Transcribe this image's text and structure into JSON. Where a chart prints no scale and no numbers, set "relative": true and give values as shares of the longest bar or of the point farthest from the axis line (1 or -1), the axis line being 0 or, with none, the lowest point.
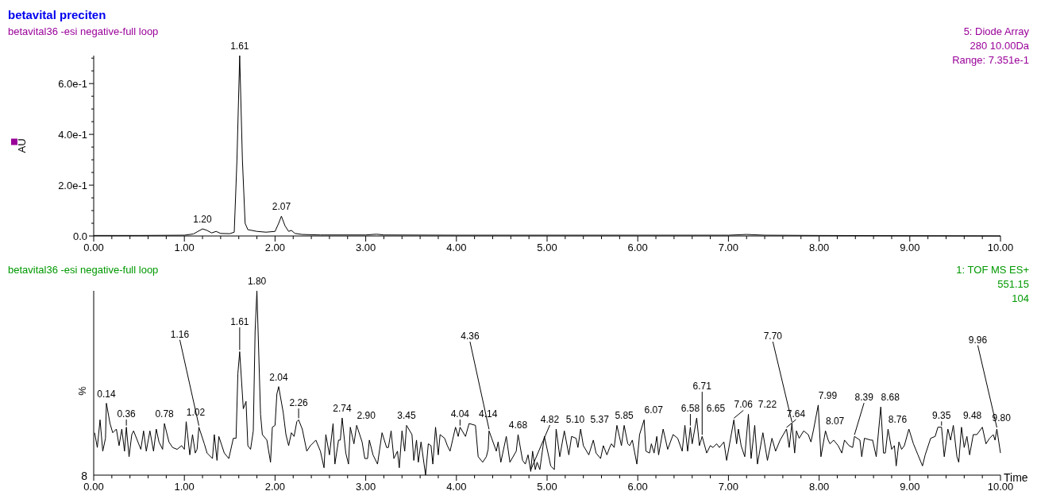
{
  "chart_data": [
    {
      "type": "line",
      "title": "betavital preciten",
      "subtitle": "betavital36 -esi negative-full loop",
      "ylabel": "AU",
      "xlim": [
        0,
        10
      ],
      "ylim": [
        0,
        0.71
      ],
      "xticks": [
        {
          "value": 0,
          "label": "0.00"
        },
        {
          "value": 0.2,
          "label": null
        },
        {
          "value": 0.4,
          "label": null
        },
        {
          "value": 0.6,
          "label": null
        },
        {
          "value": 0.8,
          "label": null
        },
        {
          "value": 1,
          "label": "1.00"
        },
        {
          "value": 1.2,
          "label": null
        },
        {
          "value": 1.4,
          "label": null
        },
        {
          "value": 1.6,
          "label": null
        },
        {
          "value": 1.8,
          "label": null
        },
        {
          "value": 2,
          "label": "2.00"
        },
        {
          "value": 2.2,
          "label": null
        },
        {
          "value": 2.4,
          "label": null
        },
        {
          "value": 2.6,
          "label": null
        },
        {
          "value": 2.8,
          "label": null
        },
        {
          "value": 3,
          "label": "3.00"
        },
        {
          "value": 3.2,
          "label": null
        },
        {
          "value": 3.4,
          "label": null
        },
        {
          "value": 3.6,
          "label": null
        },
        {
          "value": 3.8,
          "label": null
        },
        {
          "value": 4,
          "label": "4.00"
        },
        {
          "value": 4.2,
          "label": null
        },
        {
          "value": 4.4,
          "label": null
        },
        {
          "value": 4.6,
          "label": null
        },
        {
          "value": 4.8,
          "label": null
        },
        {
          "value": 5,
          "label": "5.00"
        },
        {
          "value": 5.2,
          "label": null
        },
        {
          "value": 5.4,
          "label": null
        },
        {
          "value": 5.6,
          "label": null
        },
        {
          "value": 5.8,
          "label": null
        },
        {
          "value": 6,
          "label": "6.00"
        },
        {
          "value": 6.2,
          "label": null
        },
        {
          "value": 6.4,
          "label": null
        },
        {
          "value": 6.6,
          "label": null
        },
        {
          "value": 6.8,
          "label": null
        },
        {
          "value": 7,
          "label": "7.00"
        },
        {
          "value": 7.2,
          "label": null
        },
        {
          "value": 7.4,
          "label": null
        },
        {
          "value": 7.6,
          "label": null
        },
        {
          "value": 7.8,
          "label": null
        },
        {
          "value": 8,
          "label": "8.00"
        },
        {
          "value": 8.2,
          "label": null
        },
        {
          "value": 8.4,
          "label": null
        },
        {
          "value": 8.6,
          "label": null
        },
        {
          "value": 8.8,
          "label": null
        },
        {
          "value": 9,
          "label": "9.00"
        },
        {
          "value": 9.2,
          "label": null
        },
        {
          "value": 9.4,
          "label": null
        },
        {
          "value": 9.6,
          "label": null
        },
        {
          "value": 9.8,
          "label": null
        },
        {
          "value": 10,
          "label": "10.00"
        }
      ],
      "yticks": [
        {
          "value": 0,
          "label": "0.0"
        },
        {
          "value": 0.05,
          "label": null
        },
        {
          "value": 0.1,
          "label": null
        },
        {
          "value": 0.15,
          "label": null
        },
        {
          "value": 0.2,
          "label": "2.0e-1"
        },
        {
          "value": 0.25,
          "label": null
        },
        {
          "value": 0.3,
          "label": null
        },
        {
          "value": 0.35,
          "label": null
        },
        {
          "value": 0.4,
          "label": "4.0e-1"
        },
        {
          "value": 0.45,
          "label": null
        },
        {
          "value": 0.5,
          "label": null
        },
        {
          "value": 0.55,
          "label": null
        },
        {
          "value": 0.6,
          "label": "6.0e-1"
        },
        {
          "value": 0.65,
          "label": null
        },
        {
          "value": 0.7,
          "label": null
        }
      ],
      "series": [
        {
          "color": "#000000",
          "x": [
            0,
            0.5,
            1,
            1.1,
            1.2,
            1.25,
            1.3,
            1.35,
            1.4,
            1.5,
            1.55,
            1.58,
            1.61,
            1.64,
            1.67,
            1.7,
            1.8,
            1.9,
            2,
            2.04,
            2.07,
            2.11,
            2.15,
            2.18,
            2.22,
            2.3,
            2.5,
            3,
            3.12,
            3.2,
            4,
            5,
            6,
            7,
            7.2,
            7.4,
            8,
            9,
            10
          ],
          "values": [
            0.002,
            0.002,
            0.003,
            0.008,
            0.028,
            0.022,
            0.012,
            0.018,
            0.01,
            0.009,
            0.015,
            0.3,
            0.71,
            0.3,
            0.05,
            0.025,
            0.018,
            0.015,
            0.018,
            0.05,
            0.078,
            0.04,
            0.018,
            0.022,
            0.01,
            0.006,
            0.004,
            0.004,
            0.007,
            0.004,
            0.003,
            0.003,
            0.003,
            0.003,
            0.006,
            0.003,
            0.002,
            0.001,
            0
          ]
        }
      ],
      "annotations": [
        "5: Diode Array",
        "280 10.00Da",
        "Range: 7.351e-1",
        {
          "text": "1.20",
          "x": 1.2,
          "y": 0.028
        },
        {
          "text": "1.61",
          "x": 1.61,
          "y": 0.71
        },
        {
          "text": "2.07",
          "x": 2.07,
          "y": 0.078
        }
      ]
    },
    {
      "type": "line",
      "subtitle": "betavital36 -esi negative-full loop",
      "ylabel": "%",
      "xlabel": "Time",
      "relative": true,
      "xlim": [
        0,
        10
      ],
      "xticks": [
        {
          "value": 0,
          "label": "0.00"
        },
        {
          "value": 0.2,
          "label": null
        },
        {
          "value": 0.4,
          "label": null
        },
        {
          "value": 0.6,
          "label": null
        },
        {
          "value": 0.8,
          "label": null
        },
        {
          "value": 1,
          "label": "1.00"
        },
        {
          "value": 1.2,
          "label": null
        },
        {
          "value": 1.4,
          "label": null
        },
        {
          "value": 1.6,
          "label": null
        },
        {
          "value": 1.8,
          "label": null
        },
        {
          "value": 2,
          "label": "2.00"
        },
        {
          "value": 2.2,
          "label": null
        },
        {
          "value": 2.4,
          "label": null
        },
        {
          "value": 2.6,
          "label": null
        },
        {
          "value": 2.8,
          "label": null
        },
        {
          "value": 3,
          "label": "3.00"
        },
        {
          "value": 3.2,
          "label": null
        },
        {
          "value": 3.4,
          "label": null
        },
        {
          "value": 3.6,
          "label": null
        },
        {
          "value": 3.8,
          "label": null
        },
        {
          "value": 4,
          "label": "4.00"
        },
        {
          "value": 4.2,
          "label": null
        },
        {
          "value": 4.4,
          "label": null
        },
        {
          "value": 4.6,
          "label": null
        },
        {
          "value": 4.8,
          "label": null
        },
        {
          "value": 5,
          "label": "5.00"
        },
        {
          "value": 5.2,
          "label": null
        },
        {
          "value": 5.4,
          "label": null
        },
        {
          "value": 5.6,
          "label": null
        },
        {
          "value": 5.8,
          "label": null
        },
        {
          "value": 6,
          "label": "6.00"
        },
        {
          "value": 6.2,
          "label": null
        },
        {
          "value": 6.4,
          "label": null
        },
        {
          "value": 6.6,
          "label": null
        },
        {
          "value": 6.8,
          "label": null
        },
        {
          "value": 7,
          "label": "7.00"
        },
        {
          "value": 7.2,
          "label": null
        },
        {
          "value": 7.4,
          "label": null
        },
        {
          "value": 7.6,
          "label": null
        },
        {
          "value": 7.8,
          "label": null
        },
        {
          "value": 8,
          "label": "8.00"
        },
        {
          "value": 8.2,
          "label": null
        },
        {
          "value": 8.4,
          "label": null
        },
        {
          "value": 8.6,
          "label": null
        },
        {
          "value": 8.8,
          "label": null
        },
        {
          "value": 9,
          "label": "9.00"
        },
        {
          "value": 9.2,
          "label": null
        },
        {
          "value": 9.4,
          "label": null
        },
        {
          "value": 9.6,
          "label": null
        },
        {
          "value": 9.8,
          "label": null
        },
        {
          "value": 10,
          "label": "10.00"
        }
      ],
      "series": [
        {
          "color": "#000000",
          "x": [
            0.01,
            0.04,
            0.07,
            0.1,
            0.13,
            0.14,
            0.18,
            0.21,
            0.25,
            0.28,
            0.31,
            0.34,
            0.36,
            0.39,
            0.42,
            0.44,
            0.52,
            0.55,
            0.58,
            0.62,
            0.66,
            0.69,
            0.72,
            0.76,
            0.78,
            0.83,
            0.87,
            0.92,
            0.97,
            1,
            1.02,
            1.06,
            1.09,
            1.12,
            1.14,
            1.16,
            1.22,
            1.25,
            1.31,
            1.33,
            1.36,
            1.38,
            1.44,
            1.49,
            1.54,
            1.57,
            1.59,
            1.61,
            1.65,
            1.68,
            1.7,
            1.73,
            1.76,
            1.78,
            1.8,
            1.84,
            1.86,
            1.91,
            1.95,
            1.97,
            2,
            2.02,
            2.04,
            2.09,
            2.12,
            2.15,
            2.18,
            2.21,
            2.24,
            2.26,
            2.3,
            2.35,
            2.39,
            2.45,
            2.5,
            2.54,
            2.56,
            2.6,
            2.64,
            2.66,
            2.7,
            2.72,
            2.74,
            2.78,
            2.81,
            2.83,
            2.87,
            2.9,
            2.96,
            2.99,
            3.02,
            3.04,
            3.08,
            3.13,
            3.18,
            3.23,
            3.25,
            3.28,
            3.31,
            3.35,
            3.37,
            3.4,
            3.43,
            3.45,
            3.51,
            3.53,
            3.56,
            3.58,
            3.61,
            3.66,
            3.69,
            3.72,
            3.74,
            3.77,
            3.8,
            3.82,
            3.87,
            3.9,
            3.93,
            3.99,
            4.02,
            4.04,
            4.1,
            4.14,
            4.21,
            4.24,
            4.29,
            4.33,
            4.35,
            4.36,
            4.44,
            4.46,
            4.49,
            4.55,
            4.59,
            4.66,
            4.68,
            4.73,
            4.76,
            4.79,
            4.82,
            4.84,
            4.87,
            4.89,
            4.92,
            4.97,
            5.01,
            5.04,
            5.08,
            5.1,
            5.14,
            5.19,
            5.24,
            5.27,
            5.32,
            5.34,
            5.37,
            5.4,
            5.46,
            5.51,
            5.54,
            5.59,
            5.62,
            5.66,
            5.69,
            5.71,
            5.74,
            5.77,
            5.82,
            5.85,
            5.89,
            5.91,
            5.94,
            5.99,
            6.02,
            6.07,
            6.09,
            6.13,
            6.15,
            6.18,
            6.21,
            6.23,
            6.28,
            6.33,
            6.39,
            6.44,
            6.49,
            6.52,
            6.55,
            6.58,
            6.6,
            6.65,
            6.68,
            6.71,
            6.76,
            6.8,
            6.83,
            6.87,
            6.9,
            6.95,
            6.98,
            7.02,
            7.06,
            7.09,
            7.11,
            7.14,
            7.18,
            7.22,
            7.25,
            7.29,
            7.32,
            7.38,
            7.43,
            7.48,
            7.52,
            7.57,
            7.64,
            7.67,
            7.7,
            7.73,
            7.75,
            7.78,
            7.83,
            7.88,
            7.91,
            7.94,
            7.99,
            8.02,
            8.07,
            8.1,
            8.12,
            8.16,
            8.21,
            8.25,
            8.28,
            8.33,
            8.37,
            8.39,
            8.45,
            8.47,
            8.5,
            8.57,
            8.59,
            8.63,
            8.68,
            8.71,
            8.73,
            8.76,
            8.8,
            8.83,
            8.85,
            8.88,
            8.91,
            8.94,
            8.99,
            9.04,
            9.09,
            9.14,
            9.17,
            9.23,
            9.28,
            9.31,
            9.35,
            9.38,
            9.42,
            9.45,
            9.48,
            9.52,
            9.54,
            9.57,
            9.6,
            9.63,
            9.66,
            9.7,
            9.74,
            9.8,
            9.84,
            9.88,
            9.92,
            9.94,
            9.96,
            10
          ],
          "values": [
            0.23,
            0.15,
            0.3,
            0.13,
            0.2,
            0.39,
            0.28,
            0.23,
            0.25,
            0.16,
            0.25,
            0.13,
            0.26,
            0.1,
            0.22,
            0.24,
            0.14,
            0.24,
            0.13,
            0.24,
            0.13,
            0.25,
            0.18,
            0.14,
            0.28,
            0.18,
            0.15,
            0.14,
            0.16,
            0.14,
            0.29,
            0.11,
            0.22,
            0.12,
            0.14,
            0.26,
            0.17,
            0.12,
            0.09,
            0.22,
            0.08,
            0.21,
            0.12,
            0.09,
            0.2,
            0.2,
            0.55,
            0.67,
            0.36,
            0.4,
            0.16,
            0.14,
            0.24,
            0.78,
            1,
            0.33,
            0.22,
            0.19,
            0.07,
            0.26,
            0.27,
            0.44,
            0.48,
            0.34,
            0.22,
            0.16,
            0.23,
            0.21,
            0.29,
            0.3,
            0.25,
            0.13,
            0.16,
            0.19,
            0.13,
            0.04,
            0.22,
            0.11,
            0.28,
            0.06,
            0.19,
            0.19,
            0.31,
            0.12,
            0.06,
            0.26,
            0.17,
            0.27,
            0.18,
            0.09,
            0.09,
            0.19,
            0.11,
            0.06,
            0.23,
            0.15,
            0.15,
            0.24,
            0.09,
            0.13,
            0.04,
            0.24,
            0.13,
            0.27,
            0.22,
            0.08,
            0.19,
            0.07,
            0.18,
            0,
            0.17,
            0.16,
            0.06,
            0.26,
            0.11,
            0.22,
            0.2,
            0.16,
            0.13,
            0.26,
            0.21,
            0.26,
            0.21,
            0.28,
            0.27,
            0.1,
            0.07,
            0.1,
            0.14,
            0.24,
            0.13,
            0.18,
            0.07,
            0.21,
            0.07,
            0.13,
            0.22,
            0.08,
            0.06,
            0.11,
            0.02,
            0.13,
            0.03,
            0.07,
            0.03,
            0.21,
            0.12,
            0.05,
            0.03,
            0.25,
            0.1,
            0.24,
            0.11,
            0.21,
            0.2,
            0.15,
            0.25,
            0.16,
            0.11,
            0.19,
            0.12,
            0.09,
            0.16,
            0.11,
            0.15,
            0.17,
            0.15,
            0.27,
            0.16,
            0.27,
            0.17,
            0.16,
            0.19,
            0.06,
            0.22,
            0.3,
            0.13,
            0.12,
            0.17,
            0.12,
            0.21,
            0.11,
            0.25,
            0.14,
            0.22,
            0.2,
            0.13,
            0.27,
            0.13,
            0.26,
            0.17,
            0.31,
            0.16,
            0.21,
            0.12,
            0.16,
            0.15,
            0.17,
            0.15,
            0.18,
            0.08,
            0.19,
            0.3,
            0.17,
            0.25,
            0.16,
            0.1,
            0.33,
            0.09,
            0.27,
            0.06,
            0.23,
            0.08,
            0.2,
            0.13,
            0.19,
            0.25,
            0.15,
            0.28,
            0.12,
            0.24,
            0.2,
            0.24,
            0.22,
            0.18,
            0.25,
            0.38,
            0.1,
            0.24,
            0.19,
            0.17,
            0.19,
            0.16,
            0.12,
            0.19,
            0.16,
            0.15,
            0.21,
            0.19,
            0.1,
            0.2,
            0.19,
            0.19,
            0.1,
            0.37,
            0.12,
            0.12,
            0.25,
            0.14,
            0.16,
            0.05,
            0.18,
            0.14,
            0.16,
            0.25,
            0.17,
            0.11,
            0.05,
            0.11,
            0.2,
            0.21,
            0.26,
            0.26,
            0.1,
            0.25,
            0.19,
            0.27,
            0.1,
            0.07,
            0.26,
            0.15,
            0.21,
            0.11,
            0.22,
            0.22,
            0.26,
            0.17,
            0.2,
            0.22,
            0.19,
            0.25,
            0.12
          ]
        }
      ],
      "annotations": [
        "1: TOF MS ES+",
        "551.15",
        "104",
        "8",
        {
          "text": "0.14",
          "x": 0.14,
          "y": 0.39
        },
        {
          "text": "0.36",
          "x": 0.36,
          "y": 0.26
        },
        {
          "text": "0.78",
          "x": 0.78,
          "y": 0.28
        },
        {
          "text": "1.02",
          "x": 1.02,
          "y": 0.29
        },
        {
          "text": "1.16",
          "x": 1.16,
          "y": 0.26
        },
        {
          "text": "1.61",
          "x": 1.61,
          "y": 0.67
        },
        {
          "text": "1.80",
          "x": 1.8,
          "y": 1
        },
        {
          "text": "2.04",
          "x": 2.04,
          "y": 0.48
        },
        {
          "text": "2.26",
          "x": 2.26,
          "y": 0.3
        },
        {
          "text": "2.74",
          "x": 2.74,
          "y": 0.31
        },
        {
          "text": "2.90",
          "x": 2.9,
          "y": 0.27
        },
        {
          "text": "3.45",
          "x": 3.45,
          "y": 0.27
        },
        {
          "text": "4.04",
          "x": 4.04,
          "y": 0.26
        },
        {
          "text": "4.14",
          "x": 4.14,
          "y": 0.28
        },
        {
          "text": "4.36",
          "x": 4.36,
          "y": 0.24
        },
        {
          "text": "4.68",
          "x": 4.68,
          "y": 0.22
        },
        {
          "text": "4.82",
          "x": 4.82,
          "y": 0.02
        },
        {
          "text": "5.10",
          "x": 5.1,
          "y": 0.25
        },
        {
          "text": "5.37",
          "x": 5.37,
          "y": 0.25
        },
        {
          "text": "5.85",
          "x": 5.85,
          "y": 0.27
        },
        {
          "text": "6.07",
          "x": 6.07,
          "y": 0.3
        },
        {
          "text": "6.58",
          "x": 6.58,
          "y": 0.26
        },
        {
          "text": "6.65",
          "x": 6.65,
          "y": 0.31
        },
        {
          "text": "6.71",
          "x": 6.71,
          "y": 0.21
        },
        {
          "text": "7.06",
          "x": 7.06,
          "y": 0.3
        },
        {
          "text": "7.22",
          "x": 7.22,
          "y": 0.33
        },
        {
          "text": "7.64",
          "x": 7.64,
          "y": 0.25
        },
        {
          "text": "7.70",
          "x": 7.7,
          "y": 0.28
        },
        {
          "text": "7.99",
          "x": 7.99,
          "y": 0.38
        },
        {
          "text": "8.07",
          "x": 8.07,
          "y": 0.24
        },
        {
          "text": "8.39",
          "x": 8.39,
          "y": 0.21
        },
        {
          "text": "8.68",
          "x": 8.68,
          "y": 0.37
        },
        {
          "text": "8.76",
          "x": 8.76,
          "y": 0.25
        },
        {
          "text": "9.35",
          "x": 9.35,
          "y": 0.26
        },
        {
          "text": "9.48",
          "x": 9.48,
          "y": 0.27
        },
        {
          "text": "9.80",
          "x": 9.8,
          "y": 0.26
        },
        {
          "text": "9.96",
          "x": 9.96,
          "y": 0.25
        }
      ]
    }
  ]
}
